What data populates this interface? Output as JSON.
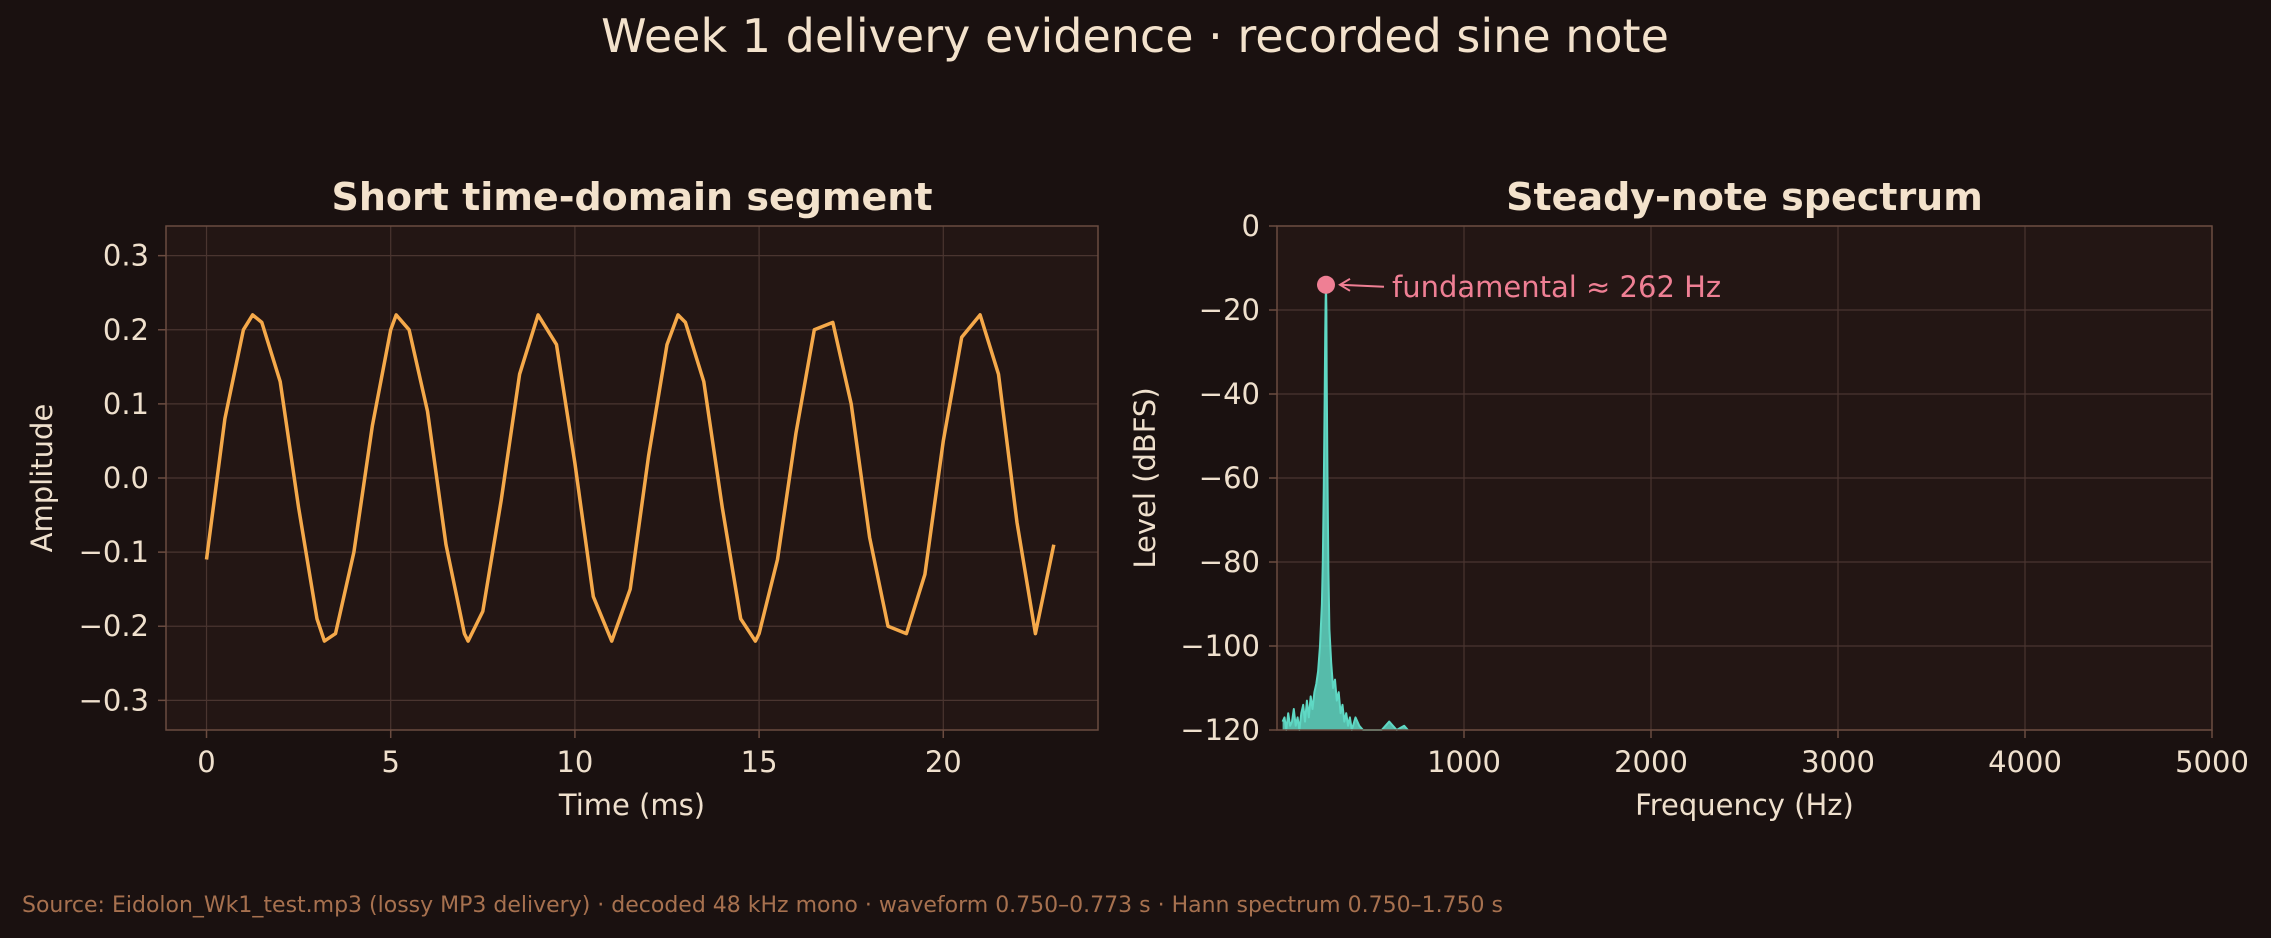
{
  "title": "Week 1 delivery evidence · recorded sine note",
  "footer": "Source: Eidolon_Wk1_test.mp3 (lossy MP3 delivery) · decoded 48 kHz mono · waveform 0.750–0.773 s · Hann spectrum 0.750–1.750 s",
  "colors": {
    "background": "#1a1110",
    "panel": "#231614",
    "grid": "#4a3530",
    "spine": "#6b4c40",
    "waveform": "#f5a94a",
    "spectrum": "#5fd8c4",
    "peak": "#ef7f94"
  },
  "chart_data": [
    {
      "type": "line",
      "title": "Short time-domain segment",
      "xlabel": "Time (ms)",
      "ylabel": "Amplitude",
      "xlim": [
        -1.1,
        24.2
      ],
      "ylim": [
        -0.34,
        0.34
      ],
      "xticks": [
        0,
        5,
        10,
        15,
        20
      ],
      "xtick_labels": [
        "0",
        "5",
        "10",
        "15",
        "20"
      ],
      "yticks": [
        -0.3,
        -0.2,
        -0.1,
        0.0,
        0.1,
        0.2,
        0.3
      ],
      "ytick_labels": [
        "−0.3",
        "−0.2",
        "−0.1",
        "0.0",
        "0.1",
        "0.2",
        "0.3"
      ],
      "grid": true,
      "series": [
        {
          "x": [
            0.0,
            0.5,
            1.0,
            1.25,
            1.5,
            2.0,
            2.5,
            3.0,
            3.2,
            3.5,
            4.0,
            4.5,
            5.0,
            5.15,
            5.5,
            6.0,
            6.5,
            7.0,
            7.1,
            7.5,
            8.0,
            8.5,
            9.0,
            9.5,
            10.0,
            10.5,
            11.0,
            11.5,
            12.0,
            12.5,
            12.8,
            13.0,
            13.5,
            14.0,
            14.5,
            14.9,
            15.0,
            15.5,
            16.0,
            16.5,
            17.0,
            17.5,
            18.0,
            18.5,
            19.0,
            19.5,
            20.0,
            20.5,
            21.0,
            21.5,
            22.0,
            22.5,
            23.0
          ],
          "y": [
            -0.11,
            0.08,
            0.2,
            0.22,
            0.21,
            0.13,
            -0.04,
            -0.19,
            -0.22,
            -0.21,
            -0.1,
            0.07,
            0.2,
            0.22,
            0.2,
            0.09,
            -0.09,
            -0.21,
            -0.22,
            -0.18,
            -0.03,
            0.14,
            0.22,
            0.18,
            0.02,
            -0.16,
            -0.22,
            -0.15,
            0.03,
            0.18,
            0.22,
            0.21,
            0.13,
            -0.04,
            -0.19,
            -0.22,
            -0.21,
            -0.11,
            0.06,
            0.2,
            0.21,
            0.1,
            -0.08,
            -0.2,
            -0.21,
            -0.13,
            0.05,
            0.19,
            0.22,
            0.14,
            -0.06,
            -0.21,
            -0.09
          ]
        }
      ]
    },
    {
      "type": "area",
      "title": "Steady-note spectrum",
      "xlabel": "Frequency (Hz)",
      "ylabel": "Level (dBFS)",
      "xlim": [
        0,
        5000
      ],
      "ylim": [
        -120,
        0
      ],
      "xticks": [
        1000,
        2000,
        3000,
        4000,
        5000
      ],
      "xtick_labels": [
        "1000",
        "2000",
        "3000",
        "4000",
        "5000"
      ],
      "yticks": [
        0,
        -20,
        -40,
        -60,
        -80,
        -100,
        -120
      ],
      "ytick_labels": [
        "0",
        "−20",
        "−40",
        "−60",
        "−80",
        "−100",
        "−120"
      ],
      "grid": true,
      "series": [
        {
          "x": [
            30,
            40,
            50,
            60,
            70,
            80,
            90,
            100,
            110,
            120,
            130,
            140,
            150,
            160,
            170,
            180,
            190,
            200,
            210,
            220,
            230,
            240,
            245,
            250,
            255,
            258,
            260,
            262,
            264,
            266,
            270,
            275,
            280,
            290,
            300,
            310,
            320,
            330,
            340,
            350,
            360,
            370,
            380,
            390,
            400,
            420,
            440,
            460,
            480,
            500,
            520,
            560,
            600,
            640,
            680,
            700
          ],
          "y": [
            -118,
            -117,
            -120,
            -116,
            -119,
            -118,
            -115,
            -119,
            -117,
            -120,
            -116,
            -114,
            -118,
            -113,
            -117,
            -112,
            -115,
            -111,
            -109,
            -106,
            -100,
            -90,
            -80,
            -62,
            -40,
            -26,
            -18,
            -14,
            -20,
            -36,
            -60,
            -82,
            -96,
            -104,
            -110,
            -108,
            -113,
            -111,
            -116,
            -114,
            -118,
            -116,
            -119,
            -117,
            -120,
            -117,
            -119,
            -120,
            -120,
            -120,
            -120,
            -120,
            -118,
            -120,
            -119,
            -120
          ]
        }
      ],
      "annotation": {
        "text": "fundamental ≈ 262 Hz",
        "x": 262,
        "y": -14
      }
    }
  ]
}
